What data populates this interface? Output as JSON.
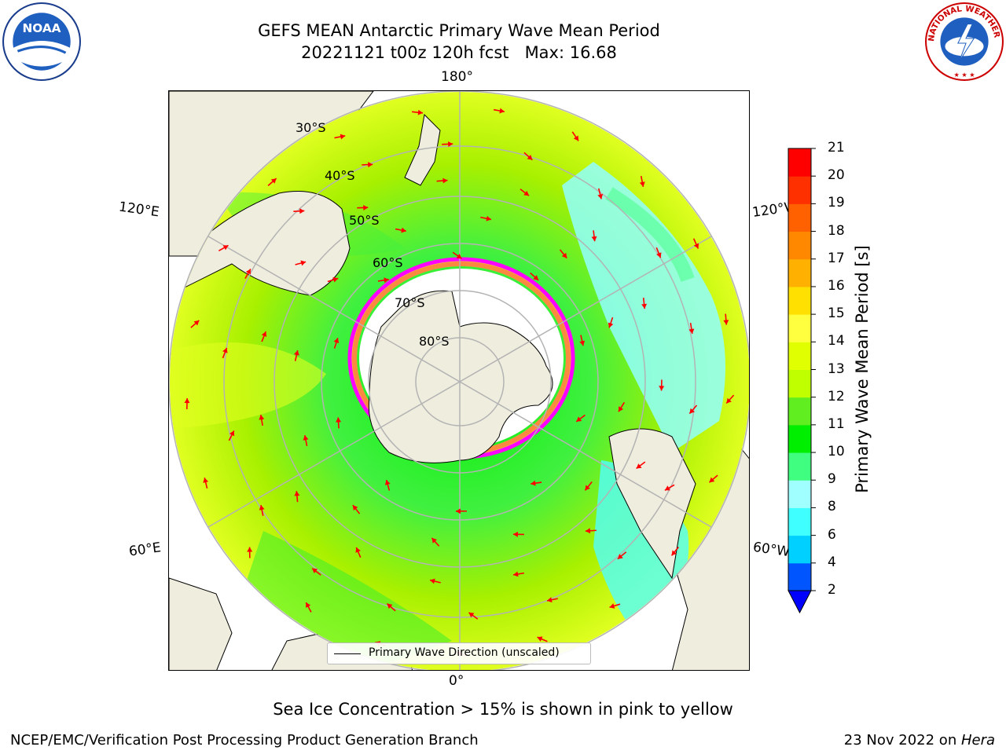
{
  "header": {
    "title_line1": "GEFS MEAN Antarctic Primary Wave Mean Period",
    "title_line2": "20221121 t00z 120h fcst   Max: 16.68"
  },
  "logos": {
    "left": {
      "icon": "noaa-logo-icon",
      "text": "NOAA"
    },
    "right": {
      "icon": "nws-logo-icon",
      "text": "NATIONAL WEATHER SERVICE"
    }
  },
  "map": {
    "projection": "south-polar-stereographic",
    "longitude_labels": {
      "top": "180°",
      "bottom": "0°",
      "upper_left": "120°E",
      "upper_right": "120°W",
      "lower_left": "60°E",
      "lower_right": "60°W"
    },
    "latitude_labels": [
      "30°S",
      "40°S",
      "50°S",
      "60°S",
      "70°S",
      "80°S"
    ],
    "vector_color": "#ff0000",
    "land_color": "#efedde",
    "sea_ice_colors": [
      "#ff00ff",
      "#ff8040",
      "#ffd040"
    ],
    "legend": {
      "label": "Primary Wave Direction (unscaled)"
    }
  },
  "colorbar": {
    "label": "Primary Wave Mean Period [s]",
    "ticks": [
      "2",
      "4",
      "6",
      "8",
      "9",
      "10",
      "11",
      "12",
      "13",
      "14",
      "15",
      "16",
      "17",
      "18",
      "19",
      "20",
      "21"
    ],
    "colors": [
      "#0055ff",
      "#00d0ff",
      "#40ffff",
      "#a0ffff",
      "#40ff80",
      "#00ee00",
      "#60ee20",
      "#c0ff00",
      "#e0ff00",
      "#ffff40",
      "#ffe000",
      "#ffb000",
      "#ff8800",
      "#ff6000",
      "#ff3000",
      "#ff0000"
    ],
    "extend_color": "#0000ff"
  },
  "caption": "Sea Ice Concentration > 15% is shown in pink to yellow",
  "footer": {
    "left": "NCEP/EMC/Verification Post Processing Product Generation Branch",
    "right_prefix": "23 Nov 2022 on ",
    "right_italic": "Hera"
  }
}
